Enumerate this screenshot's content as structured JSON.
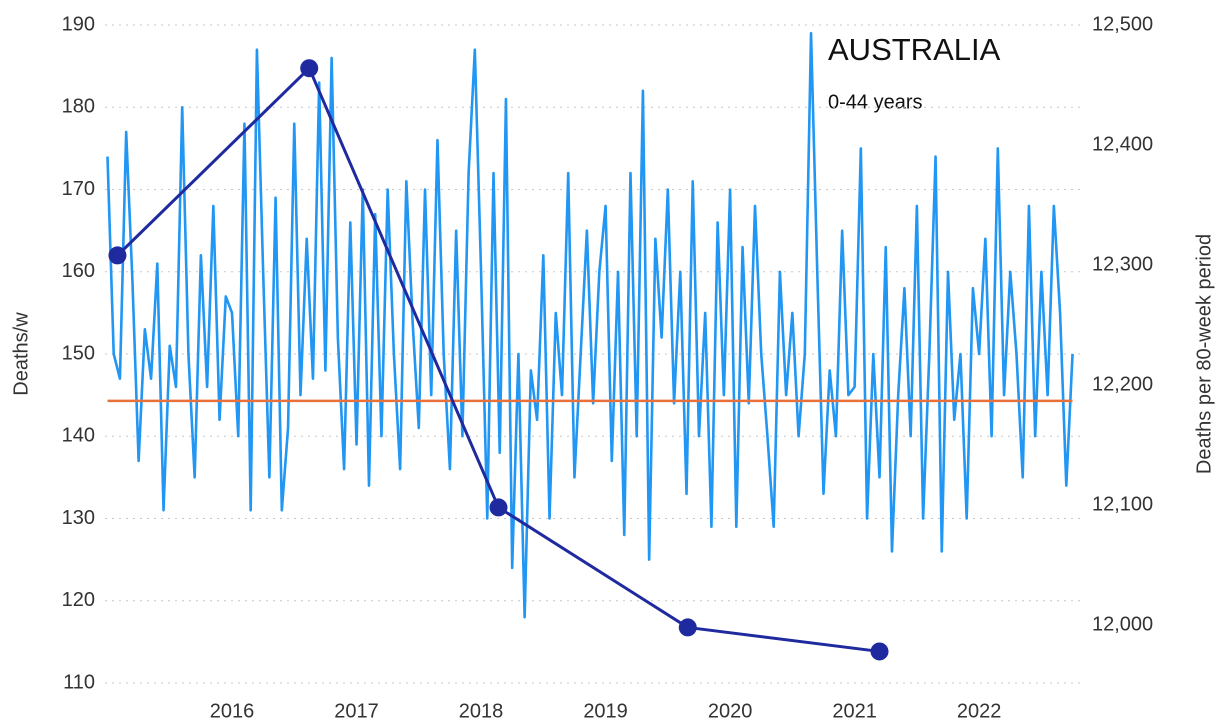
{
  "chart_data": {
    "type": "line",
    "title": "AUSTRALIA",
    "subtitle": "0-44 years",
    "ylabel": "Deaths/w",
    "y2label": "Deaths per 80-week period",
    "xlim": [
      2014.98,
      2022.81
    ],
    "xticks": [
      2016,
      2017,
      2018,
      2019,
      2020,
      2021,
      2022
    ],
    "ylim": [
      110,
      190
    ],
    "yticks": [
      110,
      120,
      130,
      140,
      150,
      160,
      170,
      180,
      190
    ],
    "y2lim": [
      11951.7,
      12500
    ],
    "y2ticks": [
      {
        "value": 12000,
        "label": "12,000"
      },
      {
        "value": 12100,
        "label": "12,100"
      },
      {
        "value": 12200,
        "label": "12,200"
      },
      {
        "value": 12300,
        "label": "12,300"
      },
      {
        "value": 12400,
        "label": "12,400"
      },
      {
        "value": 12500,
        "label": "12,500"
      }
    ],
    "grid": true,
    "series": [
      {
        "color": "#2196f3",
        "markers": false,
        "x": [
          2015,
          2015.05,
          2015.1,
          2015.15,
          2015.2,
          2015.25,
          2015.3,
          2015.35,
          2015.4,
          2015.45,
          2015.5,
          2015.55,
          2015.6,
          2015.65,
          2015.7,
          2015.75,
          2015.8,
          2015.85,
          2015.9,
          2015.95,
          2016,
          2016.05,
          2016.1,
          2016.15,
          2016.2,
          2016.25,
          2016.3,
          2016.35,
          2016.4,
          2016.45,
          2016.5,
          2016.55,
          2016.6,
          2016.65,
          2016.7,
          2016.75,
          2016.8,
          2016.85,
          2016.9,
          2016.95,
          2017,
          2017.05,
          2017.1,
          2017.15,
          2017.2,
          2017.25,
          2017.3,
          2017.35,
          2017.4,
          2017.45,
          2017.5,
          2017.55,
          2017.6,
          2017.65,
          2017.7,
          2017.75,
          2017.8,
          2017.85,
          2017.9,
          2017.95,
          2018,
          2018.05,
          2018.1,
          2018.15,
          2018.2,
          2018.25,
          2018.3,
          2018.35,
          2018.4,
          2018.45,
          2018.5,
          2018.55,
          2018.6,
          2018.65,
          2018.7,
          2018.75,
          2018.8,
          2018.85,
          2018.9,
          2018.95,
          2019,
          2019.05,
          2019.1,
          2019.15,
          2019.2,
          2019.25,
          2019.3,
          2019.35,
          2019.4,
          2019.45,
          2019.5,
          2019.55,
          2019.6,
          2019.65,
          2019.7,
          2019.75,
          2019.8,
          2019.85,
          2019.9,
          2019.95,
          2020,
          2020.05,
          2020.1,
          2020.15,
          2020.2,
          2020.25,
          2020.3,
          2020.35,
          2020.4,
          2020.45,
          2020.5,
          2020.55,
          2020.6,
          2020.65,
          2020.7,
          2020.75,
          2020.8,
          2020.85,
          2020.9,
          2020.95,
          2021,
          2021.05,
          2021.1,
          2021.15,
          2021.2,
          2021.25,
          2021.3,
          2021.35,
          2021.4,
          2021.45,
          2021.5,
          2021.55,
          2021.6,
          2021.65,
          2021.7,
          2021.75,
          2021.8,
          2021.85,
          2021.9,
          2021.95,
          2022,
          2022.05,
          2022.1,
          2022.15,
          2022.2,
          2022.25,
          2022.3,
          2022.35,
          2022.4,
          2022.45,
          2022.5,
          2022.55,
          2022.6,
          2022.65,
          2022.7,
          2022.75
        ],
        "values": [
          174,
          150,
          147,
          177,
          159,
          137,
          153,
          147,
          161,
          131,
          151,
          146,
          180,
          150,
          135,
          162,
          146,
          168,
          142,
          157,
          155,
          140,
          178,
          131,
          187,
          160,
          135,
          169,
          131,
          141,
          178,
          145,
          164,
          147,
          183,
          148,
          186,
          152,
          136,
          166,
          139,
          170,
          134,
          167,
          140,
          170,
          150,
          136,
          171,
          154,
          141,
          170,
          145,
          176,
          150,
          136,
          165,
          140,
          172,
          187,
          160,
          130,
          172,
          138,
          181,
          124,
          150,
          118,
          148,
          142,
          162,
          130,
          155,
          145,
          172,
          135,
          150,
          165,
          144,
          160,
          168,
          137,
          160,
          128,
          172,
          140,
          182,
          125,
          164,
          152,
          170,
          144,
          160,
          133,
          171,
          140,
          155,
          129,
          166,
          145,
          170,
          129,
          163,
          144,
          168,
          150,
          140,
          129,
          160,
          145,
          155,
          140,
          150,
          189,
          160,
          133,
          148,
          140,
          165,
          145,
          146,
          175,
          130,
          150,
          135,
          163,
          126,
          145,
          158,
          140,
          168,
          130,
          150,
          174,
          126,
          160,
          142,
          150,
          130,
          158,
          150,
          164,
          140,
          175,
          145,
          160,
          150,
          135,
          168,
          140,
          160,
          145,
          168,
          155,
          134,
          150
        ]
      },
      {
        "color": "#e8703a",
        "markers": false,
        "x": [
          2015,
          2022.75
        ],
        "values": [
          144.3,
          144.3
        ]
      },
      {
        "color": "#1f2a9e",
        "markers": true,
        "axis": "y2",
        "x": [
          2015.08,
          2016.62,
          2018.14,
          2019.66,
          2021.2
        ],
        "values": [
          12308,
          12464,
          12098,
          11998,
          11978
        ]
      }
    ]
  }
}
